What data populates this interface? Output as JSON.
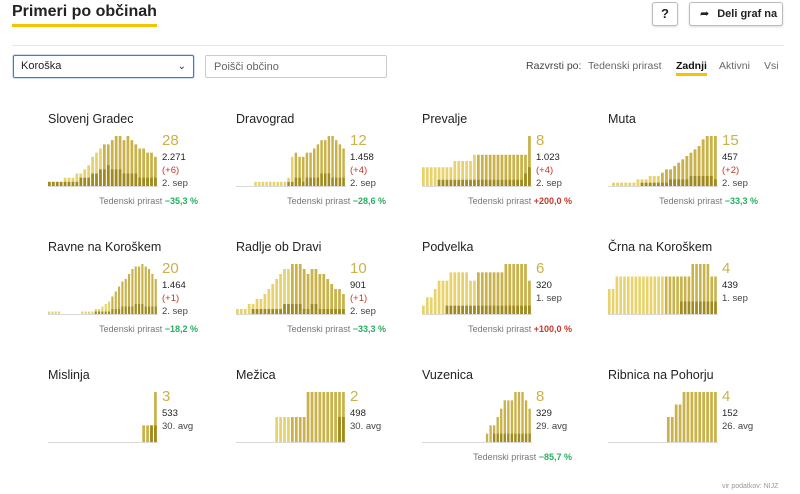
{
  "header": {
    "title": "Primeri po občinah",
    "help_label": "?",
    "share_label": "Deli graf na"
  },
  "filters": {
    "region_selected": "Koroška",
    "search_placeholder": "Poišči občino"
  },
  "sort": {
    "label": "Razvrsti po:",
    "options": [
      "Tedenski prirast",
      "Zadnji",
      "Aktivni",
      "Vsi"
    ],
    "active": "Zadnji"
  },
  "weekly_label": "Tedenski prirast",
  "source": "vir podatkov: NIJZ",
  "colors": {
    "accent": "#f5c400",
    "bar_active": "#e8d26b",
    "bar_recent": "#c9b24a",
    "bar_dark": "#a08a1e"
  },
  "municipalities": [
    {
      "name": "Slovenj Gradec",
      "latest": "28",
      "total": "2.271",
      "delta": "(+6)",
      "date": "2. sep",
      "weekly": "−35,3 %",
      "trend": "neg",
      "chart_data": {
        "type": "bar",
        "values": [
          1,
          1,
          1,
          1,
          2,
          2,
          2,
          3,
          3,
          4,
          5,
          7,
          8,
          9,
          10,
          10,
          11,
          12,
          12,
          11,
          12,
          11,
          10,
          9,
          9,
          8,
          8,
          7
        ],
        "recent": [
          1,
          1,
          1,
          1,
          1,
          1,
          1,
          1,
          2,
          2,
          2,
          3,
          3,
          4,
          4,
          5,
          4,
          4,
          4,
          3,
          3,
          3,
          3,
          2,
          2,
          2,
          2,
          2
        ]
      }
    },
    {
      "name": "Dravograd",
      "latest": "12",
      "total": "1.458",
      "delta": "(+4)",
      "date": "2. sep",
      "weekly": "−28,6 %",
      "trend": "neg",
      "chart_data": {
        "type": "bar",
        "values": [
          0,
          0,
          0,
          0,
          0,
          1,
          1,
          1,
          1,
          1,
          1,
          1,
          1,
          1,
          2,
          7,
          8,
          7,
          7,
          8,
          8,
          9,
          10,
          11,
          11,
          12,
          12,
          11,
          10,
          9
        ],
        "recent": [
          0,
          0,
          0,
          0,
          0,
          0,
          0,
          0,
          0,
          0,
          0,
          0,
          0,
          0,
          1,
          1,
          2,
          2,
          1,
          2,
          2,
          2,
          2,
          3,
          3,
          3,
          2,
          2,
          2,
          2
        ]
      }
    },
    {
      "name": "Prevalje",
      "latest": "8",
      "total": "1.023",
      "delta": "(+4)",
      "date": "2. sep",
      "weekly": "+200,0 %",
      "trend": "pos",
      "chart_data": {
        "type": "bar",
        "values": [
          3,
          3,
          3,
          3,
          3,
          3,
          3,
          3,
          4,
          4,
          4,
          4,
          4,
          5,
          5,
          5,
          5,
          5,
          5,
          5,
          5,
          5,
          5,
          5,
          5,
          5,
          5,
          8
        ],
        "recent": [
          0,
          0,
          0,
          0,
          1,
          1,
          1,
          1,
          1,
          1,
          1,
          1,
          1,
          1,
          1,
          1,
          1,
          1,
          1,
          1,
          1,
          1,
          1,
          1,
          1,
          1,
          2,
          3
        ]
      }
    },
    {
      "name": "Muta",
      "latest": "15",
      "total": "457",
      "delta": "(+2)",
      "date": "2. sep",
      "weekly": "−33,3 %",
      "trend": "neg",
      "chart_data": {
        "type": "bar",
        "values": [
          0,
          1,
          1,
          1,
          1,
          1,
          1,
          2,
          2,
          2,
          3,
          3,
          3,
          4,
          5,
          5,
          6,
          7,
          8,
          9,
          10,
          11,
          12,
          14,
          15,
          15,
          15
        ],
        "recent": [
          0,
          0,
          0,
          0,
          0,
          0,
          0,
          0,
          1,
          1,
          1,
          1,
          1,
          1,
          1,
          2,
          2,
          2,
          2,
          2,
          3,
          3,
          3,
          3,
          3,
          3,
          2
        ]
      }
    },
    {
      "name": "Ravne na Koroškem",
      "latest": "20",
      "total": "1.464",
      "delta": "(+1)",
      "date": "2. sep",
      "weekly": "−18,2 %",
      "trend": "neg",
      "chart_data": {
        "type": "bar",
        "values": [
          1,
          1,
          1,
          1,
          0,
          0,
          0,
          0,
          0,
          0,
          1,
          1,
          1,
          1,
          2,
          2,
          3,
          4,
          5,
          7,
          9,
          11,
          13,
          14,
          16,
          18,
          19,
          19,
          20,
          19,
          18,
          16,
          14
        ],
        "recent": [
          0,
          0,
          0,
          0,
          0,
          0,
          0,
          0,
          0,
          0,
          0,
          0,
          0,
          0,
          1,
          1,
          1,
          1,
          1,
          2,
          2,
          2,
          3,
          3,
          3,
          3,
          4,
          4,
          4,
          3,
          3,
          3,
          3
        ]
      }
    },
    {
      "name": "Radlje ob Dravi",
      "latest": "10",
      "total": "901",
      "delta": "(+1)",
      "date": "2. sep",
      "weekly": "−33,3 %",
      "trend": "neg",
      "chart_data": {
        "type": "bar",
        "values": [
          1,
          1,
          1,
          2,
          2,
          3,
          3,
          4,
          5,
          6,
          7,
          8,
          9,
          9,
          10,
          10,
          10,
          9,
          8,
          9,
          9,
          8,
          8,
          7,
          6,
          5,
          5,
          4
        ],
        "recent": [
          0,
          0,
          0,
          0,
          1,
          1,
          1,
          1,
          1,
          1,
          1,
          1,
          2,
          2,
          2,
          2,
          2,
          1,
          1,
          2,
          2,
          1,
          1,
          1,
          1,
          1,
          1,
          1
        ]
      }
    },
    {
      "name": "Podvelka",
      "latest": "6",
      "total": "320",
      "delta": "",
      "date": "1. sep",
      "weekly": "+100,0 %",
      "trend": "pos",
      "chart_data": {
        "type": "bar",
        "values": [
          1,
          2,
          2,
          3,
          4,
          4,
          4,
          5,
          5,
          5,
          5,
          5,
          4,
          4,
          5,
          5,
          5,
          5,
          5,
          5,
          5,
          6,
          6,
          6,
          6,
          6,
          6,
          4
        ],
        "recent": [
          0,
          0,
          0,
          0,
          0,
          0,
          1,
          1,
          1,
          1,
          1,
          1,
          1,
          1,
          1,
          1,
          1,
          1,
          1,
          1,
          1,
          1,
          1,
          1,
          1,
          1,
          1,
          1
        ]
      }
    },
    {
      "name": "Črna na Koroškem",
      "latest": "4",
      "total": "439",
      "delta": "",
      "date": "1. sep",
      "weekly": "",
      "trend": "",
      "chart_data": {
        "type": "bar",
        "values": [
          2,
          2,
          3,
          3,
          3,
          3,
          3,
          3,
          3,
          3,
          3,
          3,
          3,
          3,
          3,
          3,
          3,
          3,
          3,
          3,
          3,
          3,
          4,
          4,
          4,
          4,
          4,
          3,
          3
        ],
        "recent": [
          0,
          0,
          0,
          0,
          0,
          0,
          0,
          0,
          0,
          0,
          0,
          0,
          0,
          0,
          0,
          0,
          0,
          0,
          0,
          1,
          1,
          1,
          1,
          1,
          1,
          1,
          1,
          1,
          1
        ]
      }
    },
    {
      "name": "Mislinja",
      "latest": "3",
      "total": "533",
      "delta": "",
      "date": "30. avg",
      "weekly": "",
      "trend": "",
      "chart_data": {
        "type": "bar",
        "values": [
          0,
          0,
          0,
          0,
          0,
          0,
          0,
          0,
          0,
          0,
          0,
          0,
          0,
          0,
          0,
          0,
          0,
          0,
          0,
          0,
          0,
          0,
          0,
          0,
          1,
          1,
          1,
          3
        ],
        "recent": [
          0,
          0,
          0,
          0,
          0,
          0,
          0,
          0,
          0,
          0,
          0,
          0,
          0,
          0,
          0,
          0,
          0,
          0,
          0,
          0,
          0,
          0,
          0,
          0,
          0,
          0,
          1,
          1
        ]
      }
    },
    {
      "name": "Mežica",
      "latest": "2",
      "total": "498",
      "delta": "",
      "date": "30. avg",
      "weekly": "",
      "trend": "",
      "chart_data": {
        "type": "bar",
        "values": [
          0,
          0,
          0,
          0,
          0,
          0,
          0,
          0,
          0,
          0,
          1,
          1,
          1,
          1,
          1,
          1,
          1,
          1,
          2,
          2,
          2,
          2,
          2,
          2,
          2,
          2,
          2,
          2
        ],
        "recent": [
          0,
          0,
          0,
          0,
          0,
          0,
          0,
          0,
          0,
          0,
          0,
          0,
          0,
          0,
          0,
          0,
          0,
          0,
          0,
          0,
          0,
          0,
          0,
          0,
          0,
          0,
          1,
          1
        ]
      }
    },
    {
      "name": "Vuzenica",
      "latest": "8",
      "total": "329",
      "delta": "",
      "date": "29. avg",
      "weekly": "−85,7 %",
      "trend": "neg",
      "chart_data": {
        "type": "bar",
        "values": [
          0,
          0,
          0,
          0,
          0,
          0,
          0,
          0,
          0,
          0,
          0,
          0,
          0,
          0,
          0,
          0,
          0,
          0,
          1,
          2,
          2,
          3,
          4,
          5,
          5,
          5,
          6,
          6,
          6,
          5,
          4
        ],
        "recent": [
          0,
          0,
          0,
          0,
          0,
          0,
          0,
          0,
          0,
          0,
          0,
          0,
          0,
          0,
          0,
          0,
          0,
          0,
          0,
          0,
          1,
          1,
          1,
          1,
          1,
          1,
          1,
          1,
          1,
          1,
          1
        ]
      }
    },
    {
      "name": "Ribnica na Pohorju",
      "latest": "4",
      "total": "152",
      "delta": "",
      "date": "26. avg",
      "weekly": "",
      "trend": "",
      "chart_data": {
        "type": "bar",
        "values": [
          0,
          0,
          0,
          0,
          0,
          0,
          0,
          0,
          0,
          0,
          0,
          0,
          0,
          0,
          0,
          2,
          2,
          3,
          3,
          4,
          4,
          4,
          4,
          4,
          4,
          4,
          4,
          4
        ],
        "recent": [
          0,
          0,
          0,
          0,
          0,
          0,
          0,
          0,
          0,
          0,
          0,
          0,
          0,
          0,
          0,
          0,
          0,
          0,
          0,
          0,
          0,
          0,
          0,
          0,
          0,
          0,
          0,
          0
        ]
      }
    }
  ]
}
